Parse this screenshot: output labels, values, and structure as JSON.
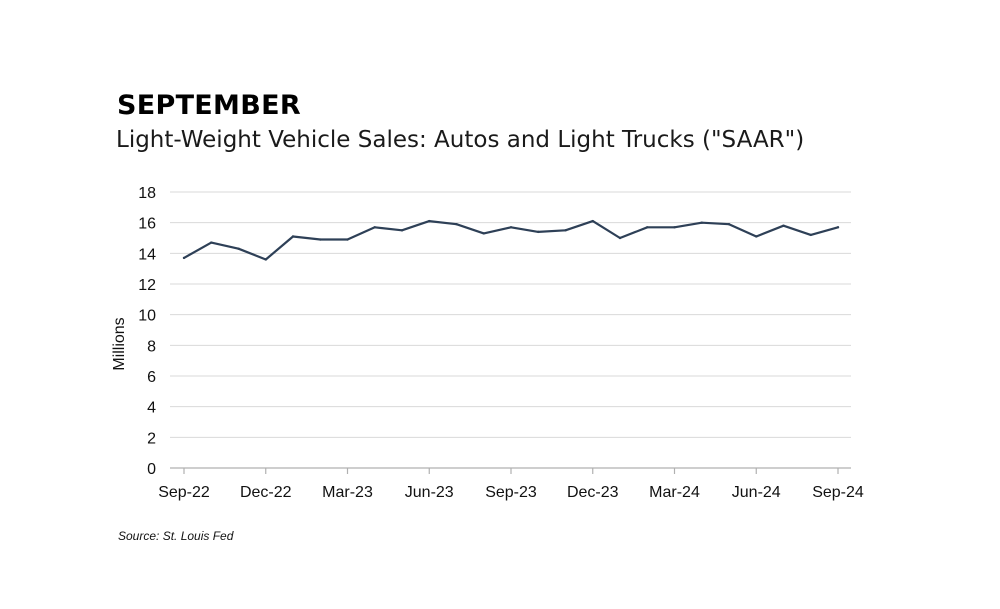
{
  "header": {
    "kicker": "SEPTEMBER",
    "title": "Light-Weight Vehicle Sales: Autos and Light Trucks (\"SAAR\")"
  },
  "source": "Source: St. Louis Fed",
  "chart_data": {
    "type": "line",
    "ylabel": "Millions",
    "ylim": [
      0,
      18
    ],
    "yticks": [
      0,
      2,
      4,
      6,
      8,
      10,
      12,
      14,
      16,
      18
    ],
    "grid": true,
    "x_tick_labels": [
      "Sep-22",
      "Dec-22",
      "Mar-23",
      "Jun-23",
      "Sep-23",
      "Dec-23",
      "Mar-24",
      "Jun-24",
      "Sep-24"
    ],
    "x": [
      "Sep-22",
      "Oct-22",
      "Nov-22",
      "Dec-22",
      "Jan-23",
      "Feb-23",
      "Mar-23",
      "Apr-23",
      "May-23",
      "Jun-23",
      "Jul-23",
      "Aug-23",
      "Sep-23",
      "Oct-23",
      "Nov-23",
      "Dec-23",
      "Jan-24",
      "Feb-24",
      "Mar-24",
      "Apr-24",
      "May-24",
      "Jun-24",
      "Jul-24",
      "Aug-24",
      "Sep-24"
    ],
    "series": [
      {
        "color": "#2e4057",
        "values": [
          13.7,
          14.7,
          14.3,
          13.6,
          15.1,
          14.9,
          14.9,
          15.7,
          15.5,
          16.1,
          15.9,
          15.3,
          15.7,
          15.4,
          15.5,
          16.1,
          15.0,
          15.7,
          15.7,
          16.0,
          15.9,
          15.1,
          15.8,
          15.2,
          15.7
        ]
      }
    ]
  }
}
